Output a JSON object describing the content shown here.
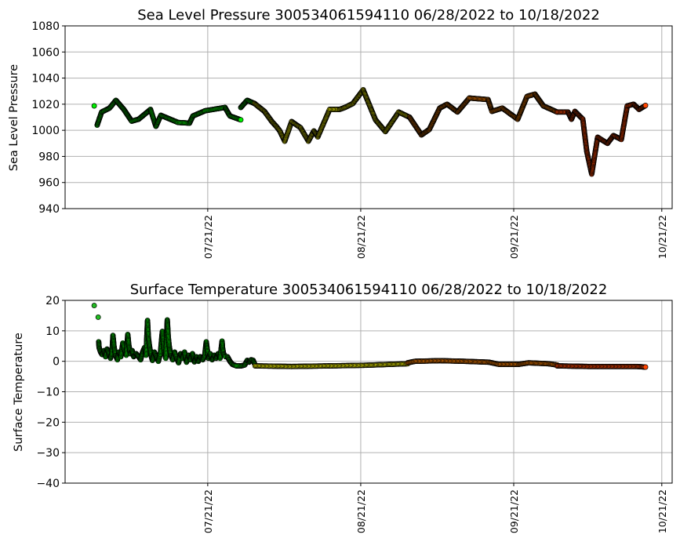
{
  "chart_data": [
    {
      "type": "scatter",
      "title": "Sea Level Pressure 300534061594110  06/28/2022 to 10/18/2022",
      "xlabel": "",
      "ylabel": "Sea Level Pressure",
      "x_unit": "days since 06/28/2022",
      "xlim": [
        -5.9,
        117.1
      ],
      "ylim": [
        940,
        1080
      ],
      "yticks": [
        940,
        960,
        980,
        1000,
        1020,
        1040,
        1060,
        1080
      ],
      "xticks": [
        {
          "value": 23,
          "label": "07/21/22"
        },
        {
          "value": 54,
          "label": "08/21/22"
        },
        {
          "value": 85,
          "label": "09/21/22"
        },
        {
          "value": 115,
          "label": "10/21/22"
        }
      ],
      "grid": true,
      "series": [
        {
          "name": "green-isolated",
          "color": "#00ee00",
          "connected": false,
          "points": [
            [
              0,
              1018.7
            ]
          ]
        },
        {
          "name": "green-a",
          "color": "#00ee00",
          "connected": true,
          "points": [
            [
              0.6,
              1004
            ],
            [
              1.5,
              1014
            ],
            [
              3.1,
              1017
            ],
            [
              4.4,
              1023
            ],
            [
              6,
              1016
            ],
            [
              7.6,
              1007
            ],
            [
              9,
              1008.5
            ],
            [
              11.4,
              1016
            ],
            [
              12.5,
              1003
            ],
            [
              13.5,
              1011.5
            ],
            [
              15.4,
              1008.5
            ],
            [
              17,
              1006
            ],
            [
              19.3,
              1005.5
            ],
            [
              20,
              1011
            ],
            [
              22.5,
              1015
            ],
            [
              26.5,
              1017.5
            ],
            [
              27.5,
              1011
            ],
            [
              29.7,
              1008
            ]
          ]
        },
        {
          "name": "green-b",
          "color": "#00ee00",
          "connected": true,
          "points": [
            [
              29.7,
              1017.5
            ],
            [
              31,
              1023
            ],
            [
              32.5,
              1020.5
            ]
          ]
        },
        {
          "name": "yellow",
          "color": "#ffff00",
          "connected": true,
          "points": [
            [
              32.5,
              1020.5
            ],
            [
              34.5,
              1014.5
            ],
            [
              36,
              1006.7
            ],
            [
              37,
              1002.5
            ],
            [
              37.6,
              999.5
            ],
            [
              38.6,
              991.7
            ],
            [
              40,
              1006.7
            ],
            [
              41.8,
              1002
            ],
            [
              43.4,
              991.7
            ],
            [
              44.5,
              999.5
            ],
            [
              45.3,
              995
            ],
            [
              47.7,
              1016
            ],
            [
              49.7,
              1016
            ],
            [
              50.8,
              1017.5
            ],
            [
              52.4,
              1020.5
            ],
            [
              54.5,
              1031
            ],
            [
              57,
              1008
            ],
            [
              59,
              999
            ],
            [
              61.7,
              1014
            ],
            [
              63.9,
              1010
            ]
          ]
        },
        {
          "name": "orange",
          "color": "#ff8000",
          "connected": true,
          "points": [
            [
              63.9,
              1010
            ],
            [
              66.3,
              996.5
            ],
            [
              67.9,
              1000.7
            ],
            [
              70,
              1017
            ],
            [
              71.5,
              1020
            ],
            [
              73.6,
              1014
            ],
            [
              76,
              1024.7
            ],
            [
              79.8,
              1023.5
            ],
            [
              80.6,
              1014.5
            ],
            [
              82.7,
              1017
            ],
            [
              85.8,
              1008.5
            ],
            [
              87.7,
              1026
            ],
            [
              89.3,
              1027.7
            ],
            [
              91,
              1018.7
            ],
            [
              93.8,
              1014
            ]
          ]
        },
        {
          "name": "red-orange",
          "color": "#ff4500",
          "connected": true,
          "points": [
            [
              93.8,
              1014
            ],
            [
              96,
              1014
            ],
            [
              96.7,
              1008.5
            ],
            [
              97.4,
              1014.5
            ],
            [
              99,
              1008.5
            ],
            [
              99.8,
              983.8
            ],
            [
              100.8,
              966.5
            ],
            [
              102,
              994.7
            ],
            [
              104,
              990
            ],
            [
              105.2,
              996
            ],
            [
              106.8,
              993
            ],
            [
              108,
              1018.7
            ],
            [
              109.3,
              1020
            ],
            [
              110.4,
              1016
            ],
            [
              111.7,
              1019
            ]
          ]
        }
      ]
    },
    {
      "type": "scatter",
      "title": "Surface Temperature 300534061594110  06/28/2022 to 10/18/2022",
      "xlabel": "",
      "ylabel": "Surface Temperature",
      "x_unit": "days since 06/28/2022",
      "xlim": [
        -5.9,
        117.1
      ],
      "ylim": [
        -40,
        20
      ],
      "yticks": [
        -40,
        -30,
        -20,
        -10,
        0,
        10,
        20
      ],
      "ytick_labels": [
        "−40",
        "−30",
        "−20",
        "−10",
        "0",
        "10",
        "20"
      ],
      "xticks": [
        {
          "value": 23,
          "label": "07/21/22"
        },
        {
          "value": 54,
          "label": "08/21/22"
        },
        {
          "value": 85,
          "label": "09/21/22"
        },
        {
          "value": 115,
          "label": "10/21/22"
        }
      ],
      "grid": true,
      "series": [
        {
          "name": "green-outliers",
          "color": "#22bb22",
          "connected": false,
          "points": [
            [
              0,
              18.3
            ],
            [
              0.8,
              14.5
            ]
          ]
        },
        {
          "name": "green",
          "color": "#00ee00",
          "connected": true,
          "points": [
            [
              0.9,
              6.4
            ],
            [
              1.0,
              4.5
            ],
            [
              1.3,
              3.0
            ],
            [
              1.6,
              2.2
            ],
            [
              2.0,
              3.5
            ],
            [
              2.3,
              1.5
            ],
            [
              2.6,
              4.0
            ],
            [
              3.0,
              2.5
            ],
            [
              3.3,
              1.0
            ],
            [
              3.6,
              3.0
            ],
            [
              3.8,
              8.5
            ],
            [
              4.0,
              5.0
            ],
            [
              4.3,
              2.0
            ],
            [
              4.7,
              0.5
            ],
            [
              5.0,
              3.0
            ],
            [
              5.4,
              1.5
            ],
            [
              5.8,
              6.0
            ],
            [
              6.1,
              3.5
            ],
            [
              6.5,
              2.0
            ],
            [
              6.8,
              8.8
            ],
            [
              7.0,
              5.5
            ],
            [
              7.3,
              2.5
            ],
            [
              7.7,
              3.5
            ],
            [
              8.0,
              1.5
            ],
            [
              8.5,
              2.5
            ],
            [
              9.0,
              1.5
            ],
            [
              9.4,
              0.5
            ],
            [
              9.8,
              3.0
            ],
            [
              10.2,
              4.5
            ],
            [
              10.5,
              2.0
            ],
            [
              10.8,
              13.4
            ],
            [
              10.9,
              10
            ],
            [
              11.0,
              7.5
            ],
            [
              11.2,
              5.0
            ],
            [
              11.5,
              2.0
            ],
            [
              11.8,
              0.3
            ],
            [
              12.2,
              3.0
            ],
            [
              12.6,
              1.5
            ],
            [
              13.0,
              0.0
            ],
            [
              13.4,
              2.5
            ],
            [
              13.8,
              9.8
            ],
            [
              14.0,
              6.0
            ],
            [
              14.2,
              3.0
            ],
            [
              14.5,
              1.0
            ],
            [
              14.8,
              13.6
            ],
            [
              14.9,
              11
            ],
            [
              15.0,
              8.0
            ],
            [
              15.2,
              5.0
            ],
            [
              15.5,
              2.0
            ],
            [
              15.9,
              0.5
            ],
            [
              16.3,
              3.0
            ],
            [
              16.7,
              1.0
            ],
            [
              17.1,
              -0.5
            ],
            [
              17.5,
              2.5
            ],
            [
              17.9,
              1.0
            ],
            [
              18.3,
              3.0
            ],
            [
              18.7,
              -0.3
            ],
            [
              19.1,
              2.0
            ],
            [
              19.5,
              0.5
            ],
            [
              19.9,
              2.5
            ],
            [
              20.3,
              -0.2
            ],
            [
              20.7,
              1.5
            ],
            [
              21.1,
              0.0
            ],
            [
              21.5,
              1.5
            ],
            [
              22.0,
              0.5
            ],
            [
              22.4,
              2.0
            ],
            [
              22.7,
              6.4
            ],
            [
              22.9,
              4
            ],
            [
              23.1,
              1.0
            ],
            [
              23.5,
              2.5
            ],
            [
              23.9,
              0.5
            ],
            [
              24.3,
              2.0
            ],
            [
              24.7,
              1.0
            ],
            [
              25.1,
              2.5
            ],
            [
              25.5,
              1.0
            ],
            [
              25.9,
              6.6
            ],
            [
              26.0,
              4.5
            ],
            [
              26.2,
              2.5
            ],
            [
              26.6,
              1.5
            ],
            [
              27.0,
              1.5
            ],
            [
              27.5,
              0.0
            ],
            [
              28.0,
              -1.0
            ],
            [
              28.8,
              -1.5
            ],
            [
              29.8,
              -1.5
            ],
            [
              30.5,
              -1.2
            ],
            [
              31.0,
              0.3
            ],
            [
              31.4,
              -0.3
            ],
            [
              31.8,
              0.5
            ],
            [
              32.2,
              0.3
            ],
            [
              32.6,
              -1.2
            ]
          ]
        },
        {
          "name": "yellow",
          "color": "#ffff00",
          "connected": true,
          "points": [
            [
              32.6,
              -1.5
            ],
            [
              40,
              -1.7
            ],
            [
              48,
              -1.5
            ],
            [
              55,
              -1.3
            ],
            [
              60,
              -1.0
            ],
            [
              63.5,
              -0.8
            ]
          ]
        },
        {
          "name": "orange",
          "color": "#ff8000",
          "connected": true,
          "points": [
            [
              63.5,
              -0.5
            ],
            [
              65,
              0
            ],
            [
              70,
              0.2
            ],
            [
              75,
              0
            ],
            [
              80,
              -0.3
            ],
            [
              82,
              -1.0
            ],
            [
              86,
              -1.0
            ],
            [
              88,
              -0.5
            ],
            [
              92,
              -0.8
            ],
            [
              93.8,
              -1.2
            ]
          ]
        },
        {
          "name": "red-orange",
          "color": "#ff4500",
          "connected": true,
          "points": [
            [
              93.8,
              -1.5
            ],
            [
              100,
              -1.7
            ],
            [
              110,
              -1.7
            ],
            [
              111.7,
              -1.9
            ]
          ]
        }
      ]
    }
  ]
}
